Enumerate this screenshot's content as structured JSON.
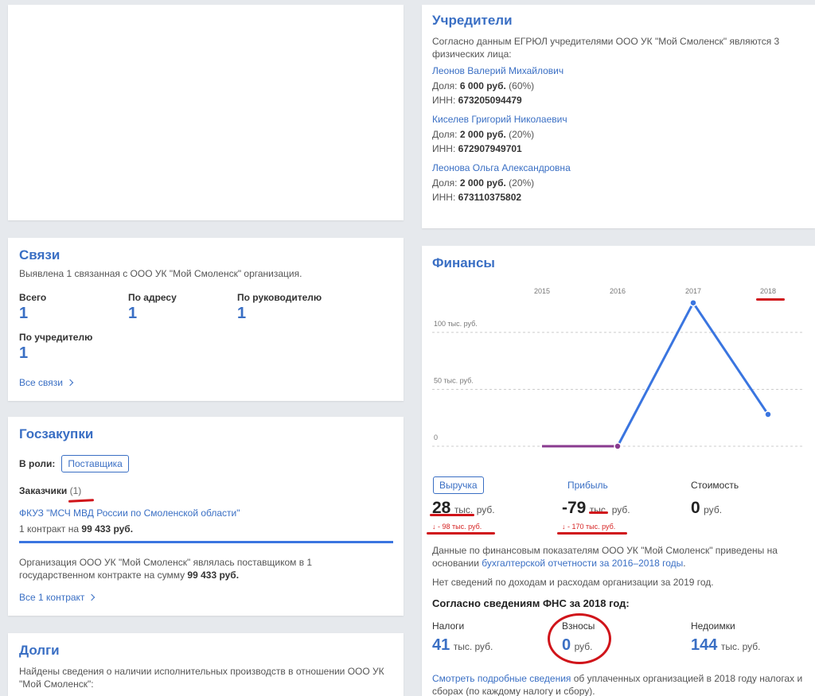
{
  "founders": {
    "title": "Учредители",
    "intro": "Согласно данным ЕГРЮЛ учредителями ООО УК \"Мой Смоленск\" являются 3 физических лица:",
    "share_label": "Доля:",
    "inn_label": "ИНН:",
    "people": [
      {
        "name": "Леонов Валерий Михайлович",
        "amount": "6 000 руб.",
        "pct": "(60%)",
        "inn": "673205094479"
      },
      {
        "name": "Киселев Григорий Николаевич",
        "amount": "2 000 руб.",
        "pct": "(20%)",
        "inn": "672907949701"
      },
      {
        "name": "Леонова Ольга Александровна",
        "amount": "2 000 руб.",
        "pct": "(20%)",
        "inn": "673110375802"
      }
    ]
  },
  "links": {
    "title": "Связи",
    "intro": "Выявлена 1 связанная с ООО УК \"Мой Смоленск\" организация.",
    "stats": [
      {
        "label": "Всего",
        "value": "1"
      },
      {
        "label": "По адресу",
        "value": "1"
      },
      {
        "label": "По руководителю",
        "value": "1"
      },
      {
        "label": "По учредителю",
        "value": "1"
      }
    ],
    "all_link": "Все связи"
  },
  "procurement": {
    "title": "Госзакупки",
    "role_label": "В роли:",
    "role_value": "Поставщика",
    "customers_label": "Заказчики",
    "customers_count": "(1)",
    "customer_name": "ФКУЗ \"МСЧ МВД России по Смоленской области\"",
    "contract_text": "1 контракт на",
    "contract_sum": "99 433 руб.",
    "note_text": "Организация ООО УК \"Мой Смоленск\" являлась поставщиком в 1 государственном контракте на сумму",
    "note_sum": "99 433 руб.",
    "all_link": "Все 1 контракт"
  },
  "debts": {
    "title": "Долги",
    "text": "Найдены сведения о наличии исполнительных производств в отношении ООО УК \"Мой Смоленск\":"
  },
  "finance": {
    "title": "Финансы",
    "tabs": [
      {
        "label": "Выручка",
        "value": "28",
        "unit_a": "тыс.",
        "unit_b": "руб.",
        "delta": "↓ - 98 тыс. руб."
      },
      {
        "label": "Прибыль",
        "value": "-79",
        "unit_a": "тыс.",
        "unit_b": "руб.",
        "delta": "↓ - 170 тыс. руб."
      },
      {
        "label": "Стоимость",
        "value": "0",
        "unit_a": "",
        "unit_b": "руб.",
        "delta": ""
      }
    ],
    "note1_text": "Данные по финансовым показателям ООО УК \"Мой Смоленск\" приведены на основании",
    "note1_link": "бухгалтерской отчетности за 2016–2018 годы",
    "note2": "Нет сведений по доходам и расходам организации за 2019 год.",
    "fns_title": "Согласно сведениям ФНС за 2018 год:",
    "fns": [
      {
        "label": "Налоги",
        "value": "41",
        "unit": "тыс. руб."
      },
      {
        "label": "Взносы",
        "value": "0",
        "unit": "руб."
      },
      {
        "label": "Недоимки",
        "value": "144",
        "unit": "тыс. руб."
      }
    ],
    "more_link": "Смотреть подробные сведения",
    "more_text": "об уплаченных организацией в 2018 году налогах и сборах (по каждому налогу и сбору).",
    "colors": {
      "line": "#3a75e0",
      "zero_line": "#8a3b8f"
    }
  },
  "chart_data": {
    "type": "line",
    "title": "",
    "x": [
      "2015",
      "2016",
      "2017",
      "2018"
    ],
    "yticks": [
      "0",
      "50 тыс. руб.",
      "100 тыс. руб."
    ],
    "ylim": [
      0,
      130
    ],
    "series": [
      {
        "values": [
          0,
          0,
          126,
          28
        ]
      }
    ],
    "grid": true
  }
}
